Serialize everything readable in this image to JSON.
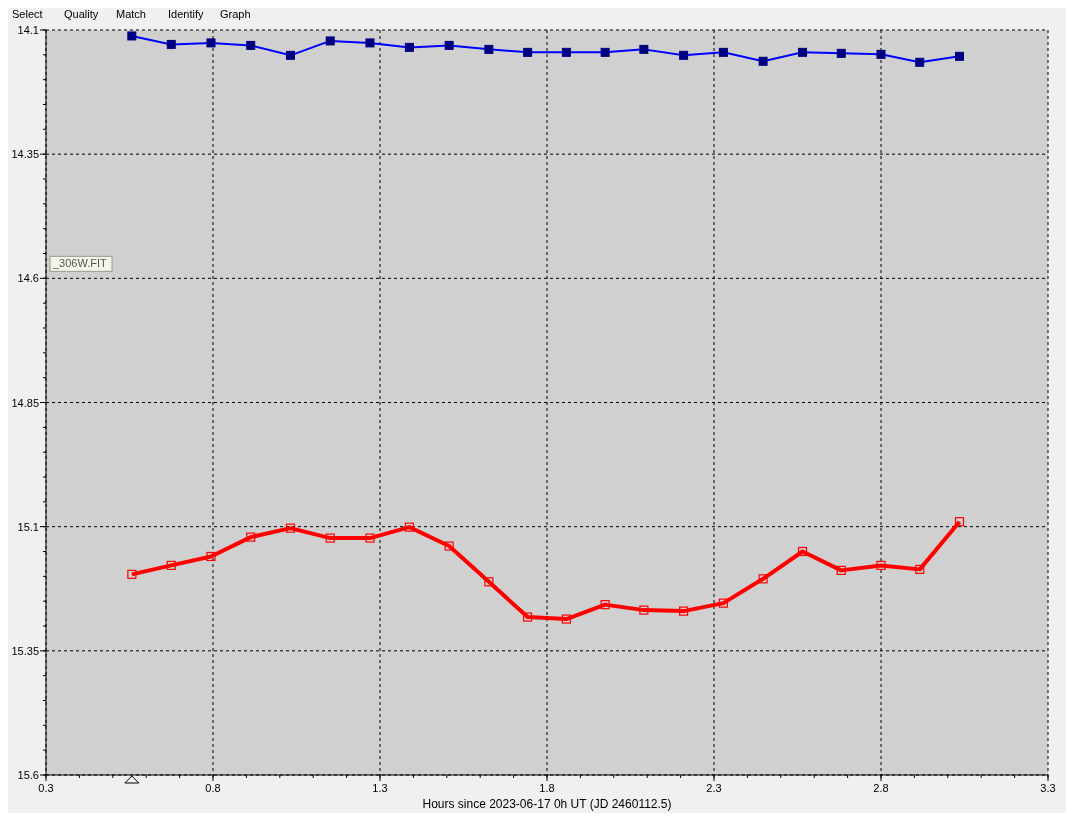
{
  "chart_data": {
    "type": "line",
    "xlabel": "Hours since 2023-06-17 0h UT (JD 2460112.5)",
    "annotations": [
      "_306W.FIT",
      "Select",
      "Quality",
      "Match",
      "Identify",
      "Graph"
    ],
    "xlim": [
      0.3,
      3.3
    ],
    "xticks": [
      0.3,
      0.8,
      1.3,
      1.8,
      2.3,
      2.8,
      3.3
    ],
    "ylim": [
      15.6,
      14.1
    ],
    "yticks": [
      14.1,
      14.35,
      14.6,
      14.85,
      15.1,
      15.35,
      15.6
    ],
    "grid": true,
    "marker": "square",
    "line_style": "solid",
    "x": [
      0.557,
      0.675,
      0.794,
      0.913,
      1.032,
      1.151,
      1.27,
      1.388,
      1.507,
      1.626,
      1.742,
      1.858,
      1.974,
      2.09,
      2.209,
      2.328,
      2.447,
      2.565,
      2.681,
      2.8,
      2.916,
      3.035
    ],
    "series": [
      {
        "color": "#0000ff",
        "values": [
          14.112,
          14.129,
          14.126,
          14.131,
          14.151,
          14.122,
          14.126,
          14.135,
          14.131,
          14.139,
          14.145,
          14.145,
          14.145,
          14.139,
          14.151,
          14.145,
          14.163,
          14.145,
          14.147,
          14.149,
          14.165,
          14.153
        ]
      },
      {
        "color": "#ff0000",
        "values": [
          15.196,
          15.178,
          15.16,
          15.121,
          15.103,
          15.123,
          15.123,
          15.101,
          15.139,
          15.211,
          15.282,
          15.286,
          15.257,
          15.268,
          15.27,
          15.254,
          15.205,
          15.15,
          15.188,
          15.178,
          15.186,
          15.09
        ]
      }
    ]
  }
}
